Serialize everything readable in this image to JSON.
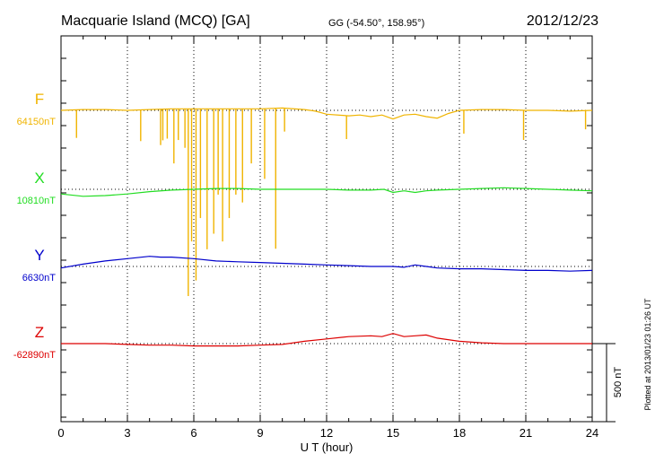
{
  "header": {
    "station": "Macquarie Island (MCQ)  [GA]",
    "coords": "GG (-54.50°, 158.95°)",
    "date": "2012/12/23"
  },
  "plotted_note": "Plotted at 2013/01/23 01:26 UT",
  "scale_bar_label": "500 nT",
  "chart_data": {
    "type": "line",
    "title": "Macquarie Island (MCQ)  [GA]",
    "xlabel": "U T (hour)",
    "ylabel": "",
    "xlim": [
      0,
      24
    ],
    "xticks": [
      0,
      3,
      6,
      9,
      12,
      15,
      18,
      21,
      24
    ],
    "xtick_labels": [
      "0",
      "3",
      "6",
      "9",
      "12",
      "15",
      "18",
      "21",
      "24"
    ],
    "grid": true,
    "y_scale_nT_per_bar": 500,
    "series": [
      {
        "name": "F",
        "baseline_label": "64150nT",
        "baseline": 64150,
        "color": "#f0b400",
        "points": [
          [
            0,
            64150
          ],
          [
            1,
            64155
          ],
          [
            2,
            64155
          ],
          [
            3,
            64150
          ],
          [
            4,
            64155
          ],
          [
            5,
            64160
          ],
          [
            6,
            64160
          ],
          [
            7,
            64160
          ],
          [
            8,
            64160
          ],
          [
            9,
            64160
          ],
          [
            10,
            64165
          ],
          [
            11,
            64155
          ],
          [
            11.5,
            64145
          ],
          [
            12,
            64125
          ],
          [
            13,
            64115
          ],
          [
            13.5,
            64120
          ],
          [
            14,
            64110
          ],
          [
            14.5,
            64120
          ],
          [
            15,
            64095
          ],
          [
            15.5,
            64120
          ],
          [
            16,
            64125
          ],
          [
            16.5,
            64110
          ],
          [
            17,
            64100
          ],
          [
            17.5,
            64130
          ],
          [
            18,
            64150
          ],
          [
            19,
            64155
          ],
          [
            20,
            64155
          ],
          [
            21,
            64150
          ],
          [
            22,
            64150
          ],
          [
            23,
            64145
          ],
          [
            24,
            64150
          ]
        ],
        "spikes": [
          [
            0.7,
            -180
          ],
          [
            3.6,
            -200
          ],
          [
            4.5,
            -230
          ],
          [
            4.6,
            -200
          ],
          [
            4.8,
            -190
          ],
          [
            5.1,
            -350
          ],
          [
            5.3,
            -200
          ],
          [
            5.6,
            -250
          ],
          [
            5.75,
            -1200
          ],
          [
            5.9,
            -850
          ],
          [
            6.1,
            -1100
          ],
          [
            6.3,
            -700
          ],
          [
            6.6,
            -900
          ],
          [
            6.9,
            -800
          ],
          [
            7.1,
            -550
          ],
          [
            7.3,
            -850
          ],
          [
            7.6,
            -700
          ],
          [
            7.9,
            -550
          ],
          [
            8.2,
            -600
          ],
          [
            8.6,
            -350
          ],
          [
            9.2,
            -450
          ],
          [
            9.7,
            -900
          ],
          [
            10.1,
            -150
          ],
          [
            12.9,
            -150
          ],
          [
            18.2,
            -150
          ],
          [
            20.9,
            -190
          ],
          [
            23.7,
            -120
          ]
        ]
      },
      {
        "name": "X",
        "baseline_label": "10810nT",
        "baseline": 10810,
        "color": "#22dd22",
        "points": [
          [
            0,
            10780
          ],
          [
            1,
            10765
          ],
          [
            2,
            10770
          ],
          [
            3,
            10780
          ],
          [
            4,
            10795
          ],
          [
            5,
            10805
          ],
          [
            6,
            10810
          ],
          [
            7,
            10815
          ],
          [
            8,
            10815
          ],
          [
            9,
            10810
          ],
          [
            10,
            10810
          ],
          [
            11,
            10810
          ],
          [
            12,
            10810
          ],
          [
            13,
            10805
          ],
          [
            14,
            10805
          ],
          [
            14.6,
            10810
          ],
          [
            15,
            10790
          ],
          [
            15.5,
            10800
          ],
          [
            16,
            10790
          ],
          [
            16.5,
            10800
          ],
          [
            17,
            10805
          ],
          [
            18,
            10810
          ],
          [
            19,
            10815
          ],
          [
            20,
            10820
          ],
          [
            21,
            10815
          ],
          [
            22,
            10810
          ],
          [
            23,
            10805
          ],
          [
            24,
            10800
          ]
        ]
      },
      {
        "name": "Y",
        "baseline_label": "6630nT",
        "baseline": 6630,
        "color": "#0000cc",
        "points": [
          [
            0,
            6620
          ],
          [
            1,
            6645
          ],
          [
            2,
            6665
          ],
          [
            3,
            6680
          ],
          [
            4,
            6695
          ],
          [
            4.5,
            6690
          ],
          [
            5,
            6690
          ],
          [
            6,
            6680
          ],
          [
            7,
            6665
          ],
          [
            8,
            6660
          ],
          [
            9,
            6655
          ],
          [
            10,
            6650
          ],
          [
            11,
            6645
          ],
          [
            12,
            6640
          ],
          [
            13,
            6635
          ],
          [
            14,
            6630
          ],
          [
            15,
            6630
          ],
          [
            15.5,
            6625
          ],
          [
            16,
            6640
          ],
          [
            16.5,
            6630
          ],
          [
            17,
            6620
          ],
          [
            18,
            6615
          ],
          [
            19,
            6615
          ],
          [
            20,
            6610
          ],
          [
            21,
            6605
          ],
          [
            22,
            6605
          ],
          [
            23,
            6600
          ],
          [
            24,
            6605
          ]
        ]
      },
      {
        "name": "Z",
        "baseline_label": "-62890nT",
        "baseline": -62890,
        "color": "#dd0000",
        "points": [
          [
            0,
            -62890
          ],
          [
            1,
            -62890
          ],
          [
            2,
            -62890
          ],
          [
            3,
            -62895
          ],
          [
            4,
            -62900
          ],
          [
            5,
            -62900
          ],
          [
            6,
            -62905
          ],
          [
            7,
            -62905
          ],
          [
            8,
            -62905
          ],
          [
            9,
            -62900
          ],
          [
            10,
            -62895
          ],
          [
            11,
            -62875
          ],
          [
            12,
            -62860
          ],
          [
            13,
            -62845
          ],
          [
            14,
            -62840
          ],
          [
            14.5,
            -62845
          ],
          [
            15,
            -62825
          ],
          [
            15.5,
            -62845
          ],
          [
            16,
            -62840
          ],
          [
            16.5,
            -62835
          ],
          [
            17,
            -62855
          ],
          [
            18,
            -62875
          ],
          [
            19,
            -62885
          ],
          [
            20,
            -62890
          ],
          [
            21,
            -62890
          ],
          [
            22,
            -62890
          ],
          [
            23,
            -62890
          ],
          [
            24,
            -62890
          ]
        ]
      }
    ]
  }
}
